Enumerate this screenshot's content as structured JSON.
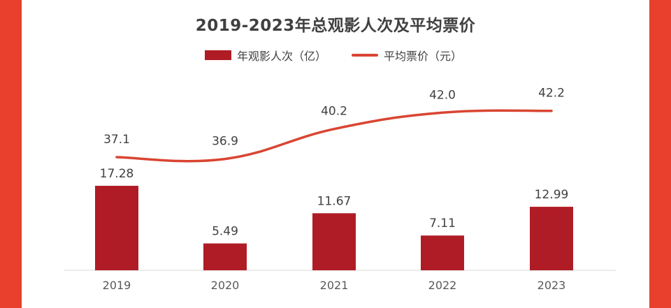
{
  "colors": {
    "background": "#e8402d",
    "bar": "#b01c25",
    "line": "#d94532",
    "text": "#404040"
  },
  "chart_data": {
    "type": "bar",
    "title": "2019-2023年总观影人次及平均票价",
    "categories": [
      "2019",
      "2020",
      "2021",
      "2022",
      "2023"
    ],
    "series": [
      {
        "name": "年观影人次（亿）",
        "type": "bar",
        "values": [
          17.28,
          5.49,
          11.67,
          7.11,
          12.99
        ],
        "labels": [
          "17.28",
          "5.49",
          "11.67",
          "7.11",
          "12.99"
        ]
      },
      {
        "name": "平均票价（元）",
        "type": "line",
        "smooth": true,
        "values": [
          37.1,
          36.9,
          40.2,
          42.0,
          42.2
        ],
        "labels": [
          "37.1",
          "36.9",
          "40.2",
          "42.0",
          "42.2"
        ]
      }
    ],
    "legend_position": "top-center",
    "grid": false
  }
}
